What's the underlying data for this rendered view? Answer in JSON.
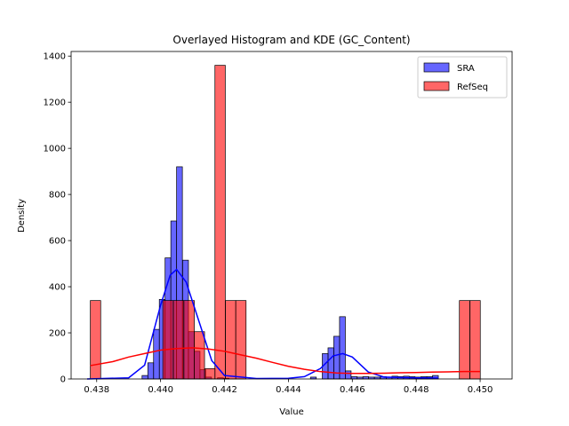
{
  "chart_data": {
    "type": "histogram",
    "title": "Overlayed Histogram and KDE (GC_Content)",
    "xlabel": "Value",
    "ylabel": "Density",
    "xlim": [
      0.4372,
      0.451
    ],
    "ylim": [
      0,
      1420
    ],
    "xticks": [
      0.438,
      0.44,
      0.442,
      0.444,
      0.446,
      0.448,
      0.45
    ],
    "xtick_labels": [
      "0.438",
      "0.440",
      "0.442",
      "0.444",
      "0.446",
      "0.448",
      "0.450"
    ],
    "yticks": [
      0,
      200,
      400,
      600,
      800,
      1000,
      1200,
      1400
    ],
    "ytick_labels": [
      "0",
      "200",
      "400",
      "600",
      "800",
      "1000",
      "1200",
      "1400"
    ],
    "legend_position": "top-right",
    "series": [
      {
        "name": "SRA",
        "color": "#0000ff",
        "bin_width": 0.000182,
        "bins": [
          [
            0.43942,
            15
          ],
          [
            0.4396,
            70
          ],
          [
            0.43978,
            215
          ],
          [
            0.43996,
            345
          ],
          [
            0.44014,
            525
          ],
          [
            0.44032,
            685
          ],
          [
            0.4405,
            920
          ],
          [
            0.44069,
            515
          ],
          [
            0.44087,
            205
          ],
          [
            0.44105,
            120
          ],
          [
            0.44123,
            40
          ],
          [
            0.44141,
            8
          ],
          [
            0.44178,
            5
          ],
          [
            0.44196,
            3
          ],
          [
            0.44469,
            8
          ],
          [
            0.44506,
            110
          ],
          [
            0.44524,
            135
          ],
          [
            0.44542,
            185
          ],
          [
            0.4456,
            270
          ],
          [
            0.44578,
            35
          ],
          [
            0.44597,
            10
          ],
          [
            0.44615,
            8
          ],
          [
            0.44633,
            10
          ],
          [
            0.44651,
            8
          ],
          [
            0.44669,
            8
          ],
          [
            0.44688,
            10
          ],
          [
            0.44706,
            8
          ],
          [
            0.44724,
            12
          ],
          [
            0.44742,
            10
          ],
          [
            0.4476,
            12
          ],
          [
            0.44778,
            10
          ],
          [
            0.44797,
            8
          ],
          [
            0.44815,
            10
          ],
          [
            0.44833,
            10
          ],
          [
            0.44851,
            15
          ]
        ],
        "kde": {
          "x": [
            0.4377,
            0.439,
            0.4395,
            0.44,
            0.4403,
            0.4405,
            0.4408,
            0.4412,
            0.4416,
            0.442,
            0.443,
            0.444,
            0.4445,
            0.445,
            0.4454,
            0.4457,
            0.446,
            0.4465,
            0.447,
            0.448,
            0.4487
          ],
          "y": [
            0,
            5,
            60,
            320,
            450,
            475,
            420,
            250,
            80,
            15,
            2,
            3,
            10,
            45,
            100,
            110,
            95,
            30,
            8,
            5,
            4
          ]
        }
      },
      {
        "name": "RefSeq",
        "color": "#ff0000",
        "bin_width": 0.000325,
        "bins": [
          [
            0.4378,
            340
          ],
          [
            0.44007,
            340
          ],
          [
            0.4404,
            340
          ],
          [
            0.44073,
            340
          ],
          [
            0.44105,
            205
          ],
          [
            0.44138,
            45
          ],
          [
            0.4417,
            1360
          ],
          [
            0.44203,
            340
          ],
          [
            0.44235,
            340
          ],
          [
            0.44935,
            340
          ],
          [
            0.44968,
            340
          ]
        ],
        "kde": {
          "x": [
            0.4378,
            0.4385,
            0.439,
            0.4395,
            0.44,
            0.4405,
            0.441,
            0.4415,
            0.442,
            0.4425,
            0.443,
            0.4435,
            0.444,
            0.4445,
            0.445,
            0.4455,
            0.446,
            0.4465,
            0.447,
            0.4475,
            0.448,
            0.4485,
            0.449,
            0.4495,
            0.45
          ],
          "y": [
            58,
            75,
            95,
            110,
            125,
            132,
            135,
            130,
            120,
            105,
            90,
            72,
            55,
            42,
            32,
            26,
            24,
            24,
            25,
            27,
            28,
            30,
            31,
            32,
            32
          ]
        }
      }
    ]
  }
}
